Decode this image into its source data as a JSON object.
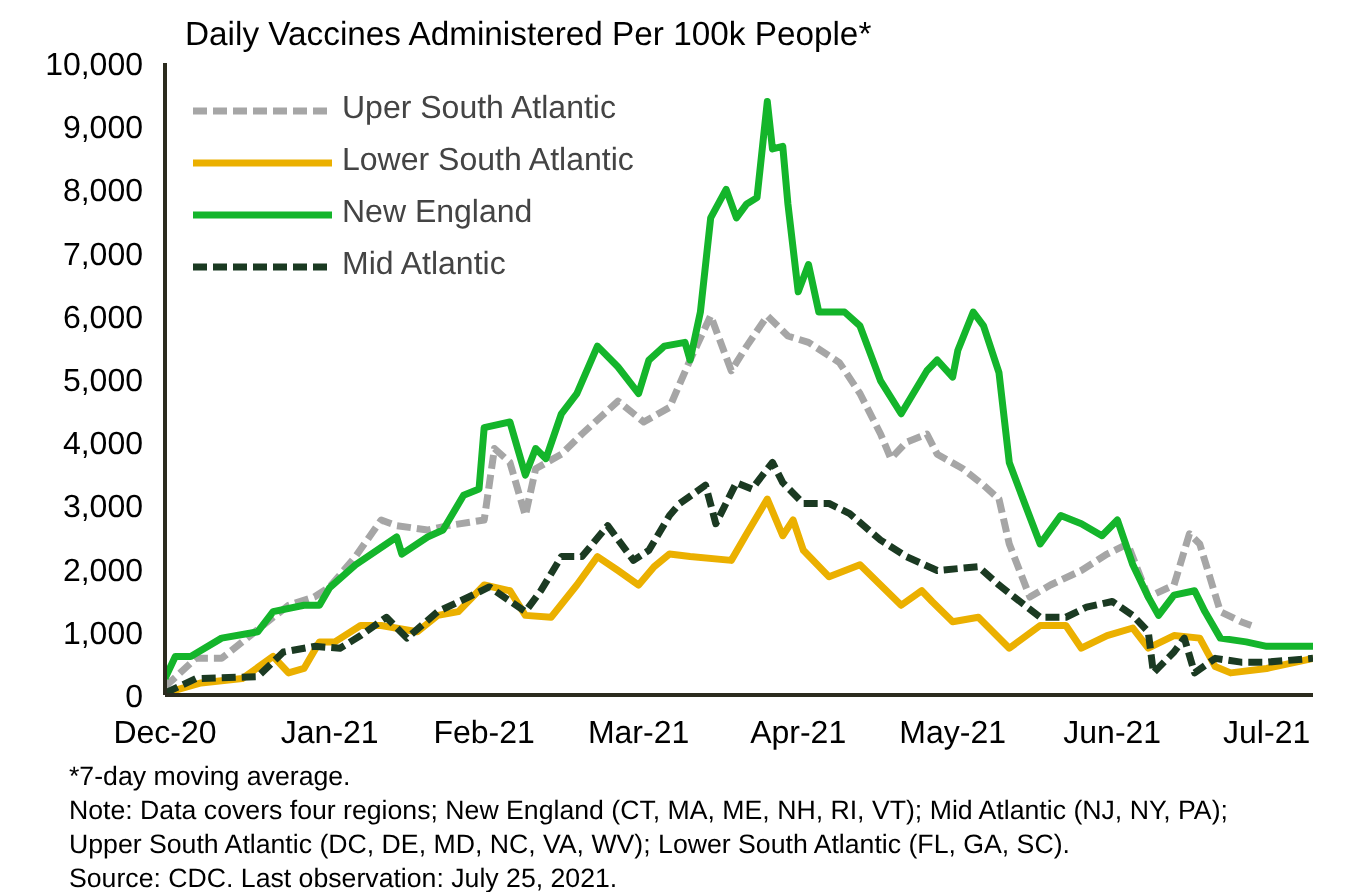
{
  "chart_data": {
    "type": "line",
    "title": "Daily Vaccines Administered Per 100k People*",
    "xlim": [
      "2020-12-14",
      "2021-07-25"
    ],
    "xticks": [
      {
        "value": "2020-12-14",
        "label": "Dec-20"
      },
      {
        "value": "2021-01-15",
        "label": "Jan-21"
      },
      {
        "value": "2021-02-14",
        "label": "Feb-21"
      },
      {
        "value": "2021-03-16",
        "label": "Mar-21"
      },
      {
        "value": "2021-04-16",
        "label": "Apr-21"
      },
      {
        "value": "2021-05-16",
        "label": "May-21"
      },
      {
        "value": "2021-06-16",
        "label": "Jun-21"
      },
      {
        "value": "2021-07-16",
        "label": "Jul-21"
      }
    ],
    "ylim": [
      0,
      10000
    ],
    "yticks": [
      0,
      {
        "value": 1000,
        "label": "1,000"
      },
      {
        "value": 2000,
        "label": "2,000"
      },
      {
        "value": 3000,
        "label": "3,000"
      },
      {
        "value": 4000,
        "label": "4,000"
      },
      {
        "value": 5000,
        "label": "5,000"
      },
      {
        "value": 6000,
        "label": "6,000"
      },
      {
        "value": 7000,
        "label": "7,000"
      },
      {
        "value": 8000,
        "label": "8,000"
      },
      {
        "value": 9000,
        "label": "9,000"
      },
      {
        "value": 10000,
        "label": "10,000"
      }
    ],
    "grid": false,
    "legend": "top left",
    "series": [
      {
        "name": "Uper South Atlantic",
        "color": "#a6a6a6",
        "line_style": "dashed",
        "x": [
          "2020-12-14",
          "2020-12-20",
          "2020-12-25",
          "2021-01-02",
          "2021-01-07",
          "2021-01-12",
          "2021-01-15",
          "2021-01-20",
          "2021-01-25",
          "2021-01-28",
          "2021-02-03",
          "2021-02-07",
          "2021-02-14",
          "2021-02-16",
          "2021-02-19",
          "2021-02-22",
          "2021-02-24",
          "2021-03-01",
          "2021-03-05",
          "2021-03-12",
          "2021-03-17",
          "2021-03-22",
          "2021-03-26",
          "2021-03-30",
          "2021-04-03",
          "2021-04-06",
          "2021-04-10",
          "2021-04-14",
          "2021-04-18",
          "2021-04-24",
          "2021-04-28",
          "2021-05-02",
          "2021-05-04",
          "2021-05-07",
          "2021-05-11",
          "2021-05-13",
          "2021-05-18",
          "2021-05-22",
          "2021-05-25",
          "2021-05-27",
          "2021-05-31",
          "2021-06-04",
          "2021-06-10",
          "2021-06-15",
          "2021-06-19",
          "2021-06-23",
          "2021-06-28",
          "2021-07-01",
          "2021-07-03",
          "2021-07-07",
          "2021-07-11",
          "2021-07-13"
        ],
        "values": [
          130,
          580,
          580,
          1100,
          1420,
          1550,
          1710,
          2190,
          2770,
          2680,
          2610,
          2680,
          2770,
          3900,
          3680,
          2840,
          3580,
          3810,
          4130,
          4650,
          4320,
          4550,
          5300,
          6000,
          5130,
          5520,
          6000,
          5680,
          5580,
          5260,
          4770,
          4130,
          3740,
          4000,
          4130,
          3810,
          3580,
          3320,
          3100,
          2390,
          1550,
          1740,
          1970,
          2230,
          2390,
          1550,
          1740,
          2550,
          2390,
          1320,
          1160,
          1100
        ]
      },
      {
        "name": "Lower South Atlantic",
        "color": "#ebb000",
        "line_style": "solid",
        "x": [
          "2020-12-14",
          "2020-12-21",
          "2020-12-29",
          "2021-01-04",
          "2021-01-07",
          "2021-01-10",
          "2021-01-13",
          "2021-01-16",
          "2021-01-21",
          "2021-01-25",
          "2021-02-01",
          "2021-02-05",
          "2021-02-09",
          "2021-02-14",
          "2021-02-19",
          "2021-02-22",
          "2021-02-27",
          "2021-03-04",
          "2021-03-08",
          "2021-03-12",
          "2021-03-16",
          "2021-03-19",
          "2021-03-22",
          "2021-03-26",
          "2021-04-03",
          "2021-04-06",
          "2021-04-10",
          "2021-04-13",
          "2021-04-15",
          "2021-04-17",
          "2021-04-22",
          "2021-04-28",
          "2021-05-02",
          "2021-05-06",
          "2021-05-10",
          "2021-05-12",
          "2021-05-16",
          "2021-05-21",
          "2021-05-27",
          "2021-06-02",
          "2021-06-07",
          "2021-06-10",
          "2021-06-15",
          "2021-06-20",
          "2021-06-23",
          "2021-06-28",
          "2021-07-03",
          "2021-07-06",
          "2021-07-09",
          "2021-07-16",
          "2021-07-25"
        ],
        "values": [
          30,
          190,
          260,
          610,
          350,
          420,
          840,
          840,
          1100,
          1100,
          1000,
          1260,
          1320,
          1740,
          1650,
          1260,
          1230,
          1740,
          2190,
          1970,
          1740,
          2030,
          2230,
          2190,
          2130,
          2550,
          3100,
          2520,
          2770,
          2290,
          1870,
          2060,
          1740,
          1420,
          1650,
          1480,
          1160,
          1230,
          740,
          1100,
          1100,
          740,
          940,
          1060,
          740,
          940,
          900,
          450,
          350,
          420,
          580
        ]
      },
      {
        "name": "New England",
        "color": "#14b52b",
        "line_style": "solid",
        "x": [
          "2020-12-14",
          "2020-12-16",
          "2020-12-19",
          "2020-12-25",
          "2021-01-01",
          "2021-01-04",
          "2021-01-10",
          "2021-01-13",
          "2021-01-15",
          "2021-01-20",
          "2021-01-28",
          "2021-01-29",
          "2021-02-03",
          "2021-02-06",
          "2021-02-10",
          "2021-02-13",
          "2021-02-14",
          "2021-02-19",
          "2021-02-22",
          "2021-02-24",
          "2021-02-26",
          "2021-03-01",
          "2021-03-04",
          "2021-03-08",
          "2021-03-12",
          "2021-03-16",
          "2021-03-18",
          "2021-03-21",
          "2021-03-25",
          "2021-03-26",
          "2021-03-28",
          "2021-03-30",
          "2021-04-02",
          "2021-04-04",
          "2021-04-06",
          "2021-04-08",
          "2021-04-10",
          "2021-04-11",
          "2021-04-13",
          "2021-04-14",
          "2021-04-16",
          "2021-04-18",
          "2021-04-20",
          "2021-04-22",
          "2021-04-25",
          "2021-04-28",
          "2021-05-02",
          "2021-05-06",
          "2021-05-11",
          "2021-05-13",
          "2021-05-16",
          "2021-05-17",
          "2021-05-20",
          "2021-05-22",
          "2021-05-25",
          "2021-05-27",
          "2021-05-30",
          "2021-06-02",
          "2021-06-06",
          "2021-06-10",
          "2021-06-14",
          "2021-06-17",
          "2021-06-20",
          "2021-06-23",
          "2021-06-25",
          "2021-06-28",
          "2021-07-02",
          "2021-07-04",
          "2021-07-07",
          "2021-07-12",
          "2021-07-16",
          "2021-07-25"
        ],
        "values": [
          260,
          610,
          610,
          900,
          1000,
          1320,
          1420,
          1420,
          1700,
          2060,
          2500,
          2230,
          2500,
          2610,
          3160,
          3260,
          4230,
          4320,
          3480,
          3900,
          3740,
          4450,
          4770,
          5520,
          5190,
          4770,
          5300,
          5520,
          5580,
          5300,
          6060,
          7550,
          8000,
          7550,
          7770,
          7870,
          9390,
          8640,
          8680,
          7770,
          6380,
          6810,
          6060,
          6060,
          6060,
          5840,
          4970,
          4450,
          5130,
          5300,
          5030,
          5450,
          6060,
          5840,
          5100,
          3680,
          3030,
          2390,
          2840,
          2710,
          2520,
          2770,
          2060,
          1550,
          1260,
          1580,
          1650,
          1320,
          900,
          840,
          770,
          770
        ]
      },
      {
        "name": "Mid Atlantic",
        "color": "#1b3a22",
        "line_style": "dashed",
        "x": [
          "2020-12-14",
          "2020-12-20",
          "2021-01-01",
          "2021-01-06",
          "2021-01-12",
          "2021-01-17",
          "2021-01-21",
          "2021-01-26",
          "2021-01-30",
          "2021-02-05",
          "2021-02-11",
          "2021-02-15",
          "2021-02-22",
          "2021-02-25",
          "2021-03-01",
          "2021-03-05",
          "2021-03-10",
          "2021-03-15",
          "2021-03-18",
          "2021-03-22",
          "2021-03-24",
          "2021-03-29",
          "2021-03-31",
          "2021-04-04",
          "2021-04-07",
          "2021-04-11",
          "2021-04-13",
          "2021-04-17",
          "2021-04-22",
          "2021-04-26",
          "2021-05-02",
          "2021-05-07",
          "2021-05-13",
          "2021-05-21",
          "2021-05-25",
          "2021-05-30",
          "2021-06-02",
          "2021-06-07",
          "2021-06-11",
          "2021-06-16",
          "2021-06-20",
          "2021-06-23",
          "2021-06-24",
          "2021-06-28",
          "2021-06-30",
          "2021-07-02",
          "2021-07-06",
          "2021-07-11",
          "2021-07-16",
          "2021-07-25"
        ],
        "values": [
          30,
          260,
          290,
          680,
          770,
          740,
          940,
          1230,
          900,
          1320,
          1550,
          1710,
          1320,
          1650,
          2190,
          2190,
          2680,
          2130,
          2290,
          2840,
          3030,
          3320,
          2710,
          3360,
          3260,
          3680,
          3360,
          3030,
          3030,
          2870,
          2450,
          2190,
          1970,
          2030,
          1740,
          1420,
          1230,
          1230,
          1390,
          1480,
          1260,
          1000,
          350,
          680,
          900,
          350,
          580,
          520,
          520,
          580
        ]
      }
    ],
    "annotations": [
      "*7-day moving average.",
      "Note: Data covers four regions; New England (CT, MA, ME, NH, RI, VT); Mid Atlantic (NJ, NY, PA); Upper South Atlantic (DC, DE, MD, NC, VA, WV); Lower South Atlantic (FL, GA, SC).",
      "Source: CDC. Last observation: July 25, 2021."
    ]
  }
}
